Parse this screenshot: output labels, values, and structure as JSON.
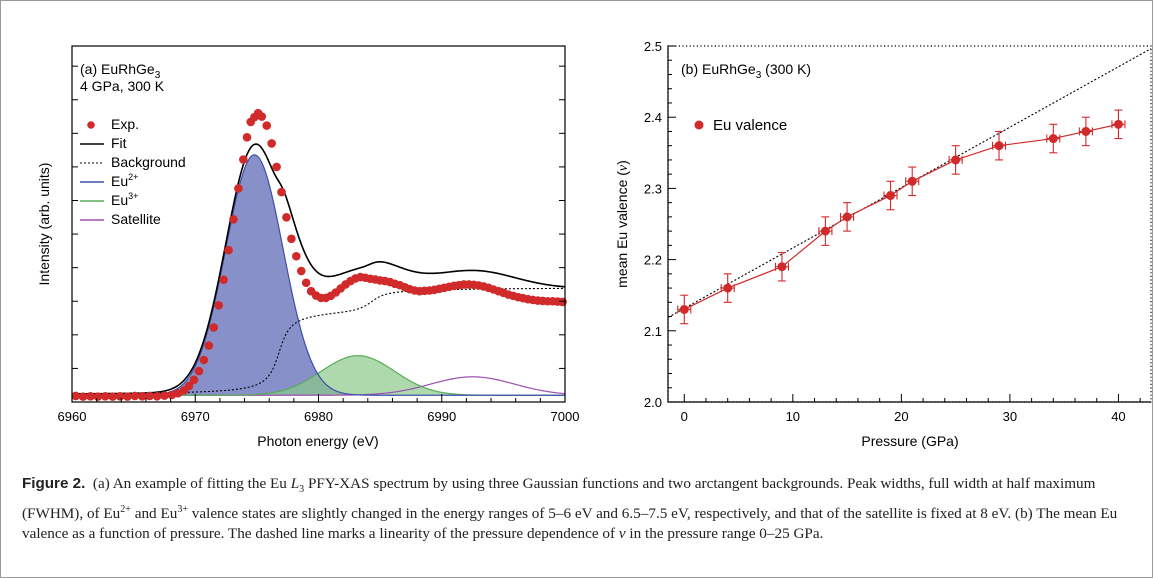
{
  "chart_data": [
    {
      "type": "line",
      "panel_label": "(a) EuRhGe",
      "panel_label_sub": "3",
      "panel_label_line2": "4 GPa, 300 K",
      "xlabel": "Photon energy (eV)",
      "ylabel": "Intensity (arb. units)",
      "xlim": [
        6960,
        7000
      ],
      "ylim": [
        0,
        1.06
      ],
      "x_ticks": [
        6960,
        6970,
        6980,
        6990,
        7000
      ],
      "y_tick_labels": "none",
      "legend_position": "upper-left",
      "legend": [
        {
          "label": "Exp.",
          "sup": "",
          "style": "dots",
          "color": "#d02a2a"
        },
        {
          "label": "Fit",
          "sup": "",
          "style": "solid",
          "color": "#000000"
        },
        {
          "label": "Background",
          "sup": "",
          "style": "dotted",
          "color": "#000000"
        },
        {
          "label": "Eu",
          "sup": "2+",
          "style": "solid",
          "color": "#3c50a8"
        },
        {
          "label": "Eu",
          "sup": "3+",
          "style": "solid",
          "color": "#5aab5a"
        },
        {
          "label": "Satellite",
          "sup": "",
          "style": "solid",
          "color": "#9b4fb0"
        }
      ],
      "components": {
        "eu2plus": {
          "center": 6974.8,
          "fwhm": 5.5,
          "amplitude": 0.716
        },
        "eu3plus": {
          "center": 6983.2,
          "fwhm": 7.0,
          "amplitude": 0.118
        },
        "satellite": {
          "center": 6992.5,
          "fwhm": 8.0,
          "amplitude": 0.055
        },
        "background_steps": [
          {
            "center": 6976.8,
            "height": 0.25,
            "width": 0.7
          },
          {
            "center": 6984.3,
            "height": 0.072,
            "width": 0.9
          }
        ],
        "baseline": 0.02
      },
      "exp_points": [
        [
          6960.3,
          0.018
        ],
        [
          6960.9,
          0.016
        ],
        [
          6961.5,
          0.017
        ],
        [
          6962.1,
          0.016
        ],
        [
          6962.7,
          0.017
        ],
        [
          6963.3,
          0.016
        ],
        [
          6963.9,
          0.017
        ],
        [
          6964.5,
          0.016
        ],
        [
          6965.1,
          0.018
        ],
        [
          6965.7,
          0.017
        ],
        [
          6966.3,
          0.018
        ],
        [
          6966.9,
          0.017
        ],
        [
          6967.5,
          0.019
        ],
        [
          6968.1,
          0.021
        ],
        [
          6968.6,
          0.026
        ],
        [
          6969.1,
          0.035
        ],
        [
          6969.5,
          0.048
        ],
        [
          6969.9,
          0.066
        ],
        [
          6970.3,
          0.092
        ],
        [
          6970.7,
          0.125
        ],
        [
          6971.1,
          0.168
        ],
        [
          6971.5,
          0.222
        ],
        [
          6971.9,
          0.288
        ],
        [
          6972.3,
          0.364
        ],
        [
          6972.7,
          0.452
        ],
        [
          6973.1,
          0.544
        ],
        [
          6973.5,
          0.636
        ],
        [
          6973.9,
          0.722
        ],
        [
          6974.2,
          0.788
        ],
        [
          6974.5,
          0.834
        ],
        [
          6974.8,
          0.848
        ],
        [
          6975.1,
          0.86
        ],
        [
          6975.4,
          0.85
        ],
        [
          6975.8,
          0.823
        ],
        [
          6976.2,
          0.77
        ],
        [
          6976.6,
          0.7
        ],
        [
          6977.0,
          0.625
        ],
        [
          6977.4,
          0.55
        ],
        [
          6977.8,
          0.486
        ],
        [
          6978.2,
          0.434
        ],
        [
          6978.6,
          0.39
        ],
        [
          6979.0,
          0.355
        ],
        [
          6979.4,
          0.33
        ],
        [
          6979.8,
          0.317
        ],
        [
          6980.2,
          0.31
        ],
        [
          6980.6,
          0.31
        ],
        [
          6981.0,
          0.316
        ],
        [
          6981.4,
          0.326
        ],
        [
          6981.8,
          0.338
        ],
        [
          6982.2,
          0.35
        ],
        [
          6982.6,
          0.36
        ],
        [
          6983.0,
          0.368
        ],
        [
          6983.4,
          0.372
        ],
        [
          6983.8,
          0.37
        ],
        [
          6984.2,
          0.367
        ],
        [
          6984.6,
          0.365
        ],
        [
          6985.0,
          0.362
        ],
        [
          6985.4,
          0.36
        ],
        [
          6985.8,
          0.357
        ],
        [
          6986.2,
          0.352
        ],
        [
          6986.6,
          0.348
        ],
        [
          6987.0,
          0.342
        ],
        [
          6987.4,
          0.336
        ],
        [
          6987.8,
          0.332
        ],
        [
          6988.2,
          0.33
        ],
        [
          6988.6,
          0.331
        ],
        [
          6989.0,
          0.332
        ],
        [
          6989.4,
          0.334
        ],
        [
          6989.8,
          0.337
        ],
        [
          6990.2,
          0.34
        ],
        [
          6990.6,
          0.343
        ],
        [
          6991.0,
          0.346
        ],
        [
          6991.4,
          0.348
        ],
        [
          6991.8,
          0.35
        ],
        [
          6992.2,
          0.35
        ],
        [
          6992.6,
          0.349
        ],
        [
          6993.0,
          0.347
        ],
        [
          6993.4,
          0.344
        ],
        [
          6993.8,
          0.34
        ],
        [
          6994.2,
          0.335
        ],
        [
          6994.6,
          0.33
        ],
        [
          6995.0,
          0.325
        ],
        [
          6995.4,
          0.32
        ],
        [
          6995.8,
          0.316
        ],
        [
          6996.2,
          0.312
        ],
        [
          6996.6,
          0.309
        ],
        [
          6997.0,
          0.306
        ],
        [
          6997.4,
          0.304
        ],
        [
          6997.8,
          0.302
        ],
        [
          6998.2,
          0.301
        ],
        [
          6998.6,
          0.3
        ],
        [
          6999.0,
          0.3
        ],
        [
          6999.4,
          0.299
        ],
        [
          6999.8,
          0.298
        ]
      ]
    },
    {
      "type": "scatter",
      "panel_label": "(b) EuRhGe",
      "panel_label_sub": "3",
      "panel_label_suffix": " (300 K)",
      "xlabel": "Pressure (GPa)",
      "ylabel": "mean Eu valence (",
      "ylabel_var": "v",
      "ylabel_end": ")",
      "xlim": [
        -1.5,
        43
      ],
      "ylim": [
        2.0,
        2.5
      ],
      "x_ticks": [
        0,
        10,
        20,
        30,
        40
      ],
      "y_ticks": [
        "2.0",
        "2.1",
        "2.2",
        "2.3",
        "2.4",
        "2.5"
      ],
      "legend_position": "upper-left",
      "legend": [
        {
          "label": "Eu valence",
          "color": "#d02a2a"
        }
      ],
      "series": [
        {
          "name": "Eu valence",
          "color": "#d02a2a",
          "x": [
            0,
            4,
            9,
            13,
            15,
            19,
            21,
            25,
            29,
            34,
            37,
            40
          ],
          "y": [
            2.13,
            2.16,
            2.19,
            2.24,
            2.26,
            2.29,
            2.31,
            2.34,
            2.36,
            2.37,
            2.38,
            2.39
          ],
          "y_error": 0.02,
          "x_error": 0.6
        }
      ],
      "linear_fit": {
        "x": [
          -1.5,
          43
        ],
        "y": [
          2.1188,
          2.4963
        ],
        "style": "dotted"
      }
    }
  ],
  "caption": {
    "label": "Figure 2.",
    "s1": "(a) An example of fitting the Eu ",
    "l": "L",
    "l_sub": "3",
    "s2": " PFY-XAS spectrum by using three Gaussian functions and two arctangent backgrounds. Peak widths, full width at half maximum (FWHM), of Eu",
    "sup1": "2+",
    "s3": " and Eu",
    "sup2": "3+",
    "s4": " valence states are slightly changed in the energy ranges of 5–6 eV and 6.5–7.5 eV, respectively, and that of the satellite is fixed at 8 eV. (b) The mean Eu valence as a function of pressure. The dashed line marks a linearity of the pressure dependence of ",
    "var": "v",
    "s5": " in the pressure range 0–25 GPa."
  }
}
